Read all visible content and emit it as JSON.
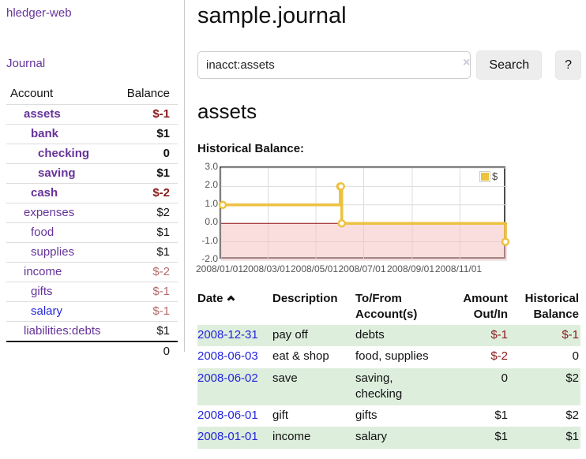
{
  "brand": "hledger-web",
  "nav": {
    "journal": "Journal"
  },
  "sidebar": {
    "headers": {
      "account": "Account",
      "balance": "Balance"
    },
    "accounts": [
      {
        "name": "assets",
        "level": 1,
        "balance": "$-1",
        "in_filter": true,
        "visited": true
      },
      {
        "name": "bank",
        "level": 2,
        "balance": "$1",
        "in_filter": true,
        "visited": true
      },
      {
        "name": "checking",
        "level": 3,
        "balance": "0",
        "in_filter": true,
        "visited": true
      },
      {
        "name": "saving",
        "level": 3,
        "balance": "$1",
        "in_filter": true,
        "visited": true
      },
      {
        "name": "cash",
        "level": 2,
        "balance": "$-2",
        "in_filter": true,
        "visited": true
      },
      {
        "name": "expenses",
        "level": 1,
        "balance": "$2",
        "in_filter": false,
        "visited": true
      },
      {
        "name": "food",
        "level": 2,
        "balance": "$1",
        "in_filter": false,
        "visited": true
      },
      {
        "name": "supplies",
        "level": 2,
        "balance": "$1",
        "in_filter": false,
        "visited": true
      },
      {
        "name": "income",
        "level": 1,
        "balance": "$-2",
        "in_filter": false,
        "visited": true
      },
      {
        "name": "gifts",
        "level": 2,
        "balance": "$-1",
        "in_filter": false,
        "visited": true
      },
      {
        "name": "salary",
        "level": 2,
        "balance": "$-1",
        "in_filter": false,
        "visited": false
      },
      {
        "name": "liabilities:debts",
        "level": 1,
        "balance": "$1",
        "in_filter": false,
        "visited": true
      }
    ],
    "total": "0"
  },
  "header": {
    "title": "sample.journal"
  },
  "search": {
    "value": "inacct:assets",
    "clear_icon": "×",
    "button": "Search",
    "help_button": "?"
  },
  "account_page": {
    "heading": "assets",
    "chart_label": "Historical Balance:"
  },
  "chart_data": {
    "type": "line",
    "step": true,
    "title": "Historical Balance",
    "x_range": [
      "2008-01-01",
      "2008-12-31"
    ],
    "ylim": [
      -2,
      3
    ],
    "yticks": [
      {
        "value": 3,
        "label": "3.0"
      },
      {
        "value": 2,
        "label": "2.0"
      },
      {
        "value": 1,
        "label": "1.0"
      },
      {
        "value": 0,
        "label": "0.0"
      },
      {
        "value": -1,
        "label": "-1.0"
      },
      {
        "value": -2,
        "label": "-2.0"
      }
    ],
    "xticks": [
      {
        "date": "2008-01-01",
        "label": "2008/01/01"
      },
      {
        "date": "2008-03-01",
        "label": "2008/03/01"
      },
      {
        "date": "2008-05-01",
        "label": "2008/05/01"
      },
      {
        "date": "2008-07-01",
        "label": "2008/07/01"
      },
      {
        "date": "2008-09-01",
        "label": "2008/09/01"
      },
      {
        "date": "2008-11-01",
        "label": "2008/11/01"
      }
    ],
    "series": [
      {
        "name": "$",
        "color": "#edc240",
        "points": [
          [
            "2008-01-01",
            1
          ],
          [
            "2008-06-01",
            2
          ],
          [
            "2008-06-02",
            2
          ],
          [
            "2008-06-03",
            0
          ],
          [
            "2008-12-31",
            -1
          ]
        ]
      }
    ],
    "grid": true,
    "negative_region_color": "#f6bebe",
    "zero_line_color": "#8f1414",
    "legend": {
      "label": "$",
      "position": "top-right"
    }
  },
  "register": {
    "columns": [
      "Date",
      "Description",
      "To/From Account(s)",
      "Amount Out/In",
      "Historical Balance"
    ],
    "rows": [
      {
        "date": "2008-12-31",
        "description": "pay off",
        "accounts": [
          "debts"
        ],
        "amount": "$-1",
        "balance": "$-1"
      },
      {
        "date": "2008-06-03",
        "description": "eat & shop",
        "accounts": [
          "food, supplies"
        ],
        "amount": "$-2",
        "balance": "0"
      },
      {
        "date": "2008-06-02",
        "description": "save",
        "accounts": [
          "saving,",
          "checking"
        ],
        "amount": "0",
        "balance": "$2"
      },
      {
        "date": "2008-06-01",
        "description": "gift",
        "accounts": [
          "gifts"
        ],
        "amount": "$1",
        "balance": "$2"
      },
      {
        "date": "2008-01-01",
        "description": "income",
        "accounts": [
          "salary"
        ],
        "amount": "$1",
        "balance": "$1"
      }
    ]
  }
}
